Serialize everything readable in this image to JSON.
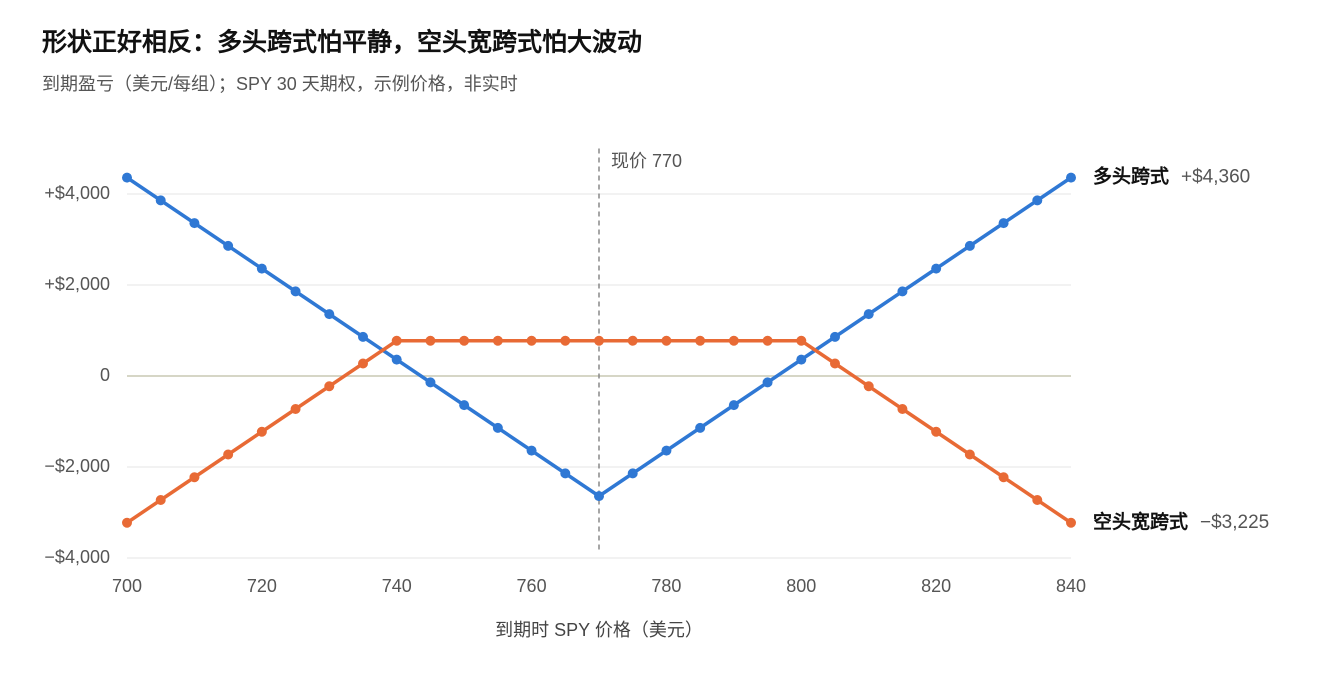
{
  "chart_data": {
    "type": "line",
    "title": "形状正好相反：多头跨式怕平静，空头宽跨式怕大波动",
    "subtitle": "到期盈亏（美元/每组）；SPY 30 天期权，示例价格，非实时",
    "x_label": "到期时 SPY 价格（美元）",
    "x": [
      700,
      705,
      710,
      715,
      720,
      725,
      730,
      735,
      740,
      745,
      750,
      755,
      760,
      765,
      770,
      775,
      780,
      785,
      790,
      795,
      800,
      805,
      810,
      815,
      820,
      825,
      830,
      835,
      840
    ],
    "xlim": [
      700,
      840
    ],
    "xticks": [
      700,
      720,
      740,
      760,
      780,
      800,
      820,
      840
    ],
    "ylim": [
      -4000,
      5000
    ],
    "yticks": [
      {
        "value": -4000,
        "label": "−$4,000"
      },
      {
        "value": -2000,
        "label": "−$2,000"
      },
      0,
      {
        "value": 2000,
        "label": "+$2,000"
      },
      {
        "value": 4000,
        "label": "+$4,000"
      }
    ],
    "grid": true,
    "annotations": [
      {
        "text": "现价 770",
        "x": 770
      }
    ],
    "series": [
      {
        "name": "多头跨式",
        "color": "#2f78d4",
        "values": [
          4360,
          3860,
          3360,
          2860,
          2360,
          1860,
          1360,
          860,
          360,
          -140,
          -640,
          -1140,
          -1640,
          -2140,
          -2640,
          -2140,
          -1640,
          -1140,
          -640,
          -140,
          360,
          860,
          1360,
          1860,
          2360,
          2860,
          3360,
          3860,
          4360
        ],
        "value_labels": [
          null,
          null,
          null,
          null,
          null,
          null,
          null,
          null,
          null,
          null,
          null,
          null,
          null,
          null,
          null,
          null,
          null,
          null,
          null,
          null,
          null,
          null,
          null,
          null,
          null,
          null,
          null,
          null,
          "+$4,360"
        ]
      },
      {
        "name": "空头宽跨式",
        "color": "#e86a35",
        "values": [
          -3225,
          -2725,
          -2225,
          -1725,
          -1225,
          -725,
          -225,
          275,
          775,
          775,
          775,
          775,
          775,
          775,
          775,
          775,
          775,
          775,
          775,
          775,
          775,
          275,
          -225,
          -725,
          -1225,
          -1725,
          -2225,
          -2725,
          -3225
        ],
        "value_labels": [
          null,
          null,
          null,
          null,
          null,
          null,
          null,
          null,
          null,
          null,
          null,
          null,
          null,
          null,
          null,
          null,
          null,
          null,
          null,
          null,
          null,
          null,
          null,
          null,
          null,
          null,
          null,
          null,
          "−$3,225"
        ]
      }
    ]
  }
}
